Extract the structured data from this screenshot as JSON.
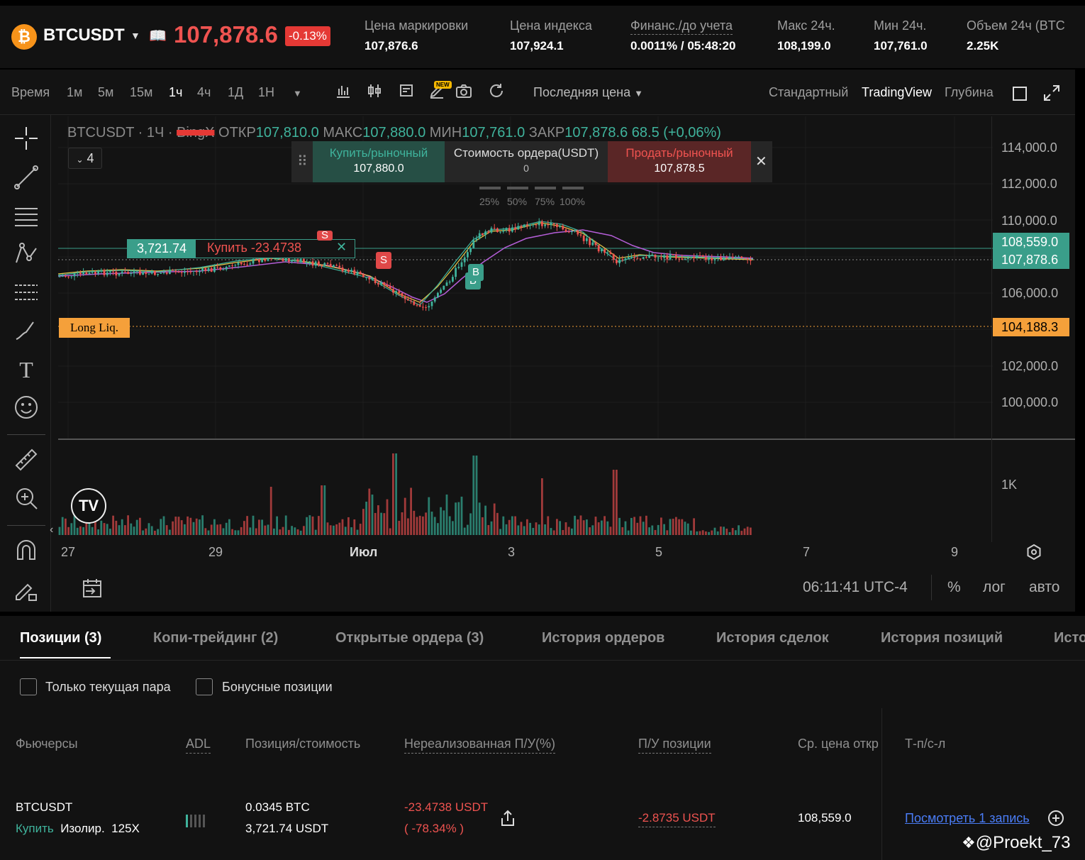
{
  "ticker": {
    "coin_icon": "bitcoin-icon",
    "symbol": "BTCUSDT",
    "price": "107,878.6",
    "change_pct": "-0.13%",
    "stats": [
      {
        "label": "Цена маркировки",
        "value": "107,876.6"
      },
      {
        "label": "Цена индекса",
        "value": "107,924.1"
      },
      {
        "label": "Финанс./до учета",
        "value": "0.0011% / 05:48:20"
      },
      {
        "label": "Макс 24ч.",
        "value": "108,199.0"
      },
      {
        "label": "Мин 24ч.",
        "value": "107,761.0"
      },
      {
        "label": "Объем 24ч (BTC",
        "value": "2.25K"
      }
    ]
  },
  "toolbar": {
    "time_label": "Время",
    "timeframes": [
      "1м",
      "5м",
      "15м",
      "1ч",
      "4ч",
      "1Д",
      "1Н"
    ],
    "active_timeframe": "1ч",
    "new_badge": "NEW",
    "price_type": "Последняя цена",
    "views": [
      "Стандартный",
      "TradingView",
      "Глубина"
    ],
    "active_view": "TradingView"
  },
  "legend": {
    "title": "BTCUSDT · 1Ч · ",
    "exchange": "BingX",
    "open_label": "ОТКР",
    "open": "107,810.0",
    "high_label": "МАКС",
    "high": "107,880.0",
    "low_label": "МИН",
    "low": "107,761.0",
    "close_label": "ЗАКР",
    "close": "107,878.6",
    "change": "68.5 (+0,06%)",
    "indicators_count": "4"
  },
  "quick_order": {
    "buy_label": "Купить/рыночный",
    "buy_price": "107,880.0",
    "value_label": "Стоимость ордера(USDT)",
    "value": "0",
    "sell_label": "Продать/рыночный",
    "sell_price": "107,878.5",
    "pct_options": [
      "25%",
      "50%",
      "75%",
      "100%"
    ]
  },
  "position_line": {
    "value": "3,721.74",
    "text": "Купить -23.4738"
  },
  "liquidation_label": "Long Liq.",
  "markers": {
    "sell": "S",
    "buy": "B"
  },
  "price_axis": {
    "ticks": [
      "114,000.0",
      "112,000.0",
      "110,000.0",
      "106,000.0",
      "102,000.0",
      "100,000.0"
    ],
    "entry_tag": "108,559.0",
    "last_tag": "107,878.6",
    "liq_tag": "104,188.3",
    "volume_tick": "1K"
  },
  "time_axis": {
    "ticks": [
      "27",
      "29",
      "Июл",
      "3",
      "5",
      "7",
      "9"
    ]
  },
  "chart_footer": {
    "clock": "06:11:41 UTC-4",
    "percent": "%",
    "log": "лог",
    "auto": "авто"
  },
  "colors": {
    "up": "#3fb39c",
    "down": "#ef5350",
    "liq": "#f5a03a",
    "ma_purple": "#b55ed8",
    "ma_yellow": "#e6c84a"
  },
  "tabs": [
    "Позиции (3)",
    "Копи-трейдинг (2)",
    "Открытые ордера (3)",
    "История ордеров",
    "История сделок",
    "История позиций",
    "Исто"
  ],
  "filters": {
    "current_pair": "Только текущая пара",
    "bonus": "Бонусные позиции"
  },
  "table": {
    "headers": [
      "Фьючерсы",
      "ADL",
      "Позиция/стоимость",
      "Нереализованная П/У(%)",
      "П/У позиции",
      "Ср. цена откр",
      "Т-п/с-л"
    ],
    "row": {
      "symbol": "BTCUSDT",
      "side": "Купить",
      "mode": "Изолир.",
      "leverage": "125X",
      "position": "0.0345 BTC",
      "value": "3,721.74 USDT",
      "unrealized": "-23.4738 USDT",
      "unrealized_pct": "( -78.34% )",
      "position_pnl": "-2.8735 USDT",
      "avg_open": "108,559.0",
      "tpsl_link": "Посмотреть 1 запись"
    }
  },
  "watermark": "@Proekt_73"
}
